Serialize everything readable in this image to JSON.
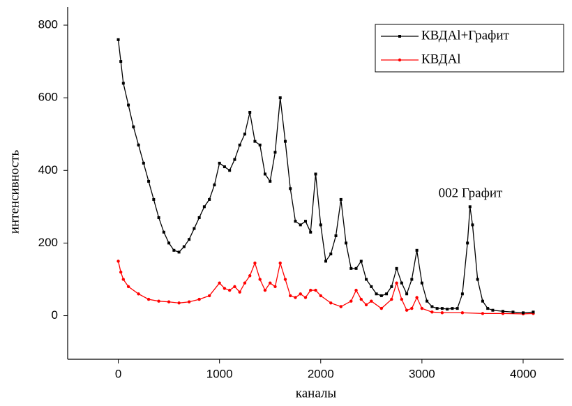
{
  "chart_data": {
    "type": "line",
    "x_label": "каналы",
    "y_label": "интенсивность",
    "annotation": {
      "text": "002 Графит",
      "x": 3480,
      "y": 335
    },
    "xlim": [
      -500,
      4400
    ],
    "ylim": [
      -120,
      850
    ],
    "xticks": [
      0,
      1000,
      2000,
      3000,
      4000
    ],
    "yticks": [
      0,
      200,
      400,
      600,
      800
    ],
    "grid": false,
    "legend": "top-right",
    "series": [
      {
        "name": "КВДAl+Графит",
        "color": "#000000",
        "marker": "square",
        "x": [
          0,
          25,
          50,
          100,
          150,
          200,
          250,
          300,
          350,
          400,
          450,
          500,
          550,
          600,
          650,
          700,
          750,
          800,
          850,
          900,
          950,
          1000,
          1050,
          1100,
          1150,
          1200,
          1250,
          1300,
          1350,
          1400,
          1450,
          1500,
          1550,
          1600,
          1650,
          1700,
          1750,
          1800,
          1850,
          1900,
          1950,
          2000,
          2050,
          2100,
          2150,
          2200,
          2250,
          2300,
          2350,
          2400,
          2450,
          2500,
          2550,
          2600,
          2650,
          2700,
          2750,
          2800,
          2850,
          2900,
          2950,
          3000,
          3050,
          3100,
          3150,
          3200,
          3250,
          3300,
          3350,
          3400,
          3450,
          3475,
          3500,
          3550,
          3600,
          3650,
          3700,
          3800,
          3900,
          4000,
          4100
        ],
        "values": [
          760,
          700,
          640,
          580,
          520,
          470,
          420,
          370,
          320,
          270,
          230,
          200,
          180,
          175,
          190,
          210,
          240,
          270,
          300,
          320,
          360,
          420,
          410,
          400,
          430,
          470,
          500,
          560,
          480,
          470,
          390,
          370,
          450,
          600,
          480,
          350,
          260,
          250,
          260,
          230,
          390,
          250,
          150,
          170,
          220,
          320,
          200,
          130,
          130,
          150,
          100,
          80,
          60,
          55,
          60,
          80,
          130,
          90,
          60,
          100,
          180,
          90,
          40,
          25,
          20,
          20,
          18,
          20,
          20,
          60,
          200,
          300,
          250,
          100,
          40,
          20,
          15,
          12,
          10,
          8,
          10
        ]
      },
      {
        "name": "КВДAl",
        "color": "#ff0000",
        "marker": "circle",
        "x": [
          0,
          25,
          50,
          100,
          200,
          300,
          400,
          500,
          600,
          700,
          800,
          900,
          1000,
          1050,
          1100,
          1150,
          1200,
          1250,
          1300,
          1350,
          1400,
          1450,
          1500,
          1550,
          1600,
          1650,
          1700,
          1750,
          1800,
          1850,
          1900,
          1950,
          2000,
          2100,
          2200,
          2300,
          2350,
          2400,
          2450,
          2500,
          2600,
          2700,
          2750,
          2800,
          2850,
          2900,
          2950,
          3000,
          3100,
          3200,
          3400,
          3600,
          3800,
          4000,
          4100
        ],
        "values": [
          150,
          120,
          100,
          80,
          60,
          45,
          40,
          38,
          35,
          38,
          45,
          55,
          90,
          75,
          70,
          80,
          65,
          90,
          110,
          145,
          100,
          70,
          90,
          80,
          145,
          100,
          55,
          50,
          60,
          50,
          70,
          70,
          55,
          35,
          25,
          40,
          70,
          45,
          30,
          40,
          20,
          45,
          90,
          45,
          15,
          20,
          50,
          20,
          10,
          8,
          8,
          6,
          6,
          5,
          6
        ]
      }
    ]
  }
}
